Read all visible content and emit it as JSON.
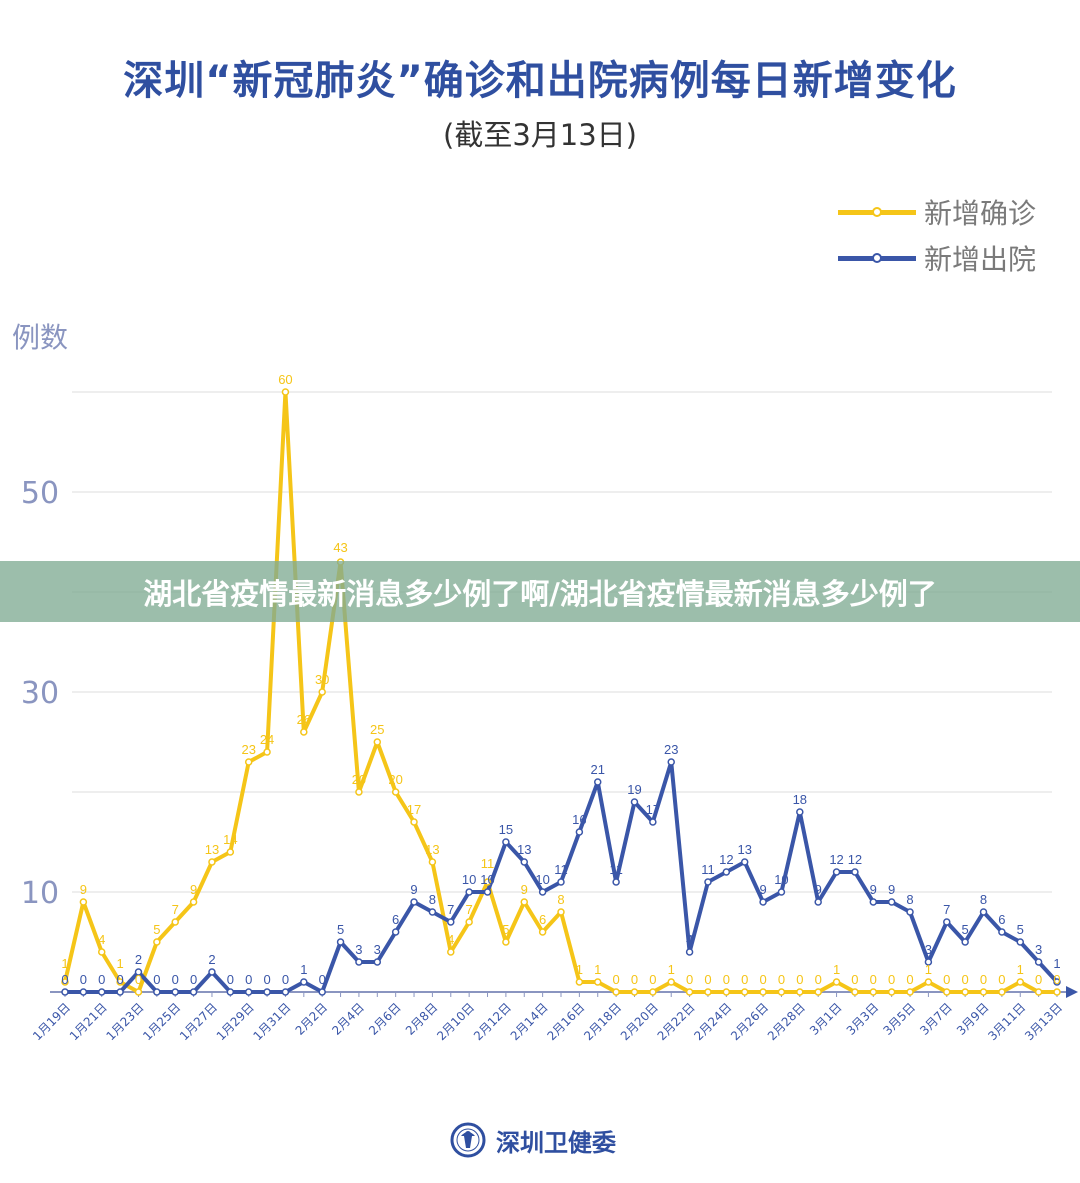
{
  "chart_data": {
    "type": "line",
    "title": "深圳“新冠肺炎”确诊和出院病例每日新增变化",
    "subtitle": "(截至3月13日)",
    "ylabel": "例数",
    "xlabel": "",
    "ylim": [
      0,
      60
    ],
    "yticks": [
      10,
      30,
      50
    ],
    "gridlines": [
      10,
      20,
      30,
      40,
      50,
      60
    ],
    "grid": true,
    "legend_position": "top-right",
    "x": [
      "1月19日",
      "1月20日",
      "1月21日",
      "1月22日",
      "1月23日",
      "1月24日",
      "1月25日",
      "1月26日",
      "1月27日",
      "1月28日",
      "1月29日",
      "1月30日",
      "1月31日",
      "2月1日",
      "2月2日",
      "2月3日",
      "2月4日",
      "2月5日",
      "2月6日",
      "2月7日",
      "2月8日",
      "2月9日",
      "2月10日",
      "2月11日",
      "2月12日",
      "2月13日",
      "2月14日",
      "2月15日",
      "2月16日",
      "2月17日",
      "2月18日",
      "2月19日",
      "2月20日",
      "2月21日",
      "2月22日",
      "2月23日",
      "2月24日",
      "2月25日",
      "2月26日",
      "2月27日",
      "2月28日",
      "2月29日",
      "3月1日",
      "3月2日",
      "3月3日",
      "3月4日",
      "3月5日",
      "3月6日",
      "3月7日",
      "3月8日",
      "3月9日",
      "3月10日",
      "3月11日",
      "3月12日",
      "3月13日"
    ],
    "series": [
      {
        "name": "新增确诊",
        "color": "#f5c518",
        "values": [
          1,
          9,
          4,
          1,
          0,
          5,
          7,
          9,
          13,
          14,
          23,
          24,
          60,
          26,
          30,
          43,
          20,
          25,
          20,
          17,
          13,
          4,
          7,
          11,
          5,
          9,
          6,
          8,
          1,
          1,
          0,
          0,
          0,
          1,
          0,
          0,
          0,
          0,
          0,
          0,
          0,
          0,
          1,
          0,
          0,
          0,
          0,
          1,
          0,
          0,
          0,
          0,
          1,
          0,
          0
        ]
      },
      {
        "name": "新增出院",
        "color": "#3a56a8",
        "values": [
          0,
          0,
          0,
          0,
          2,
          0,
          0,
          0,
          2,
          0,
          0,
          0,
          0,
          1,
          0,
          5,
          3,
          3,
          6,
          9,
          8,
          7,
          10,
          10,
          15,
          13,
          10,
          11,
          16,
          21,
          11,
          19,
          17,
          23,
          4,
          11,
          12,
          13,
          9,
          10,
          18,
          9,
          12,
          12,
          9,
          9,
          8,
          3,
          7,
          5,
          8,
          6,
          5,
          3,
          1
        ]
      }
    ]
  },
  "banner": "湖北省疫情最新消息多少例了啊/湖北省疫情最新消息多少例了",
  "footer": {
    "org": "深圳卫健委"
  }
}
